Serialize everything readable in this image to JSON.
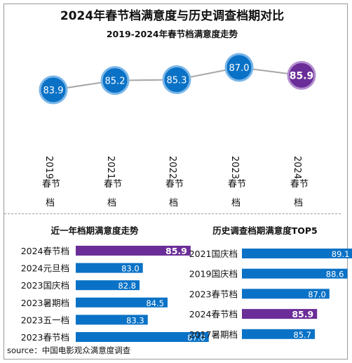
{
  "title": "2024年春节档满意度与历史调查档期对比",
  "colors": {
    "blue": "#0a72c6",
    "purple": "#6b2d98",
    "blue_ring": "#7ab6e8",
    "purple_ring": "#b48fd0",
    "line": "#a6a6a6"
  },
  "chart_data": [
    {
      "type": "line",
      "title": "2019-2024年春节档满意度走势",
      "categories": [
        "2019春节档",
        "2021春节档",
        "2022春节档",
        "2023春节档",
        "2024春节档"
      ],
      "values": [
        83.9,
        85.2,
        85.3,
        87.0,
        85.9
      ],
      "value_labels": [
        "83.9",
        "85.2",
        "85.3",
        "87.0",
        "85.9"
      ],
      "highlight": "2024春节档"
    },
    {
      "type": "bar",
      "orientation": "horizontal",
      "title": "近一年档期满意度走势",
      "categories": [
        "2024春节档",
        "2024元旦档",
        "2023国庆档",
        "2023暑期档",
        "2023五一档",
        "2023春节档"
      ],
      "values": [
        85.9,
        83.0,
        82.8,
        84.5,
        83.3,
        87.0
      ],
      "value_labels": [
        "85.9",
        "83.0",
        "82.8",
        "84.5",
        "83.3",
        "87.0"
      ],
      "highlight": "2024春节档"
    },
    {
      "type": "bar",
      "orientation": "horizontal",
      "title": "历史调查档期满意度TOP5",
      "categories": [
        "2021国庆档",
        "2019国庆档",
        "2023春节档",
        "2024春节档",
        "2017暑期档"
      ],
      "values": [
        89.1,
        88.6,
        87.0,
        85.9,
        85.7
      ],
      "value_labels": [
        "89.1",
        "88.6",
        "87.0",
        "85.9",
        "85.7"
      ],
      "highlight": "2024春节档"
    }
  ],
  "source": "source：中国电影观众满意度调查"
}
